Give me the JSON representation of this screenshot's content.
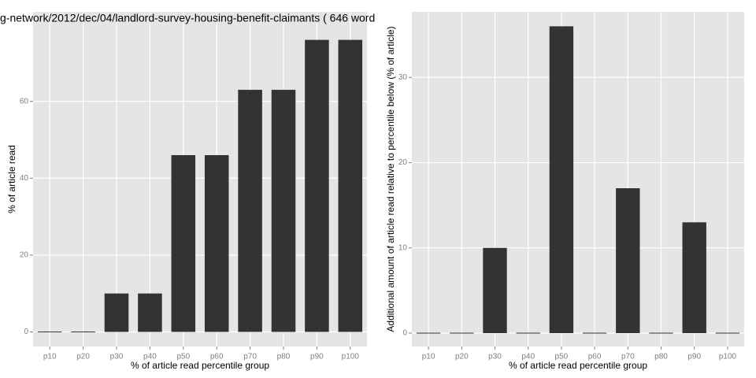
{
  "chart_data": [
    {
      "type": "bar",
      "title": "g-network/2012/dec/04/landlord-survey-housing-benefit-claimants ( 646 word",
      "x_label": "% of article read percentile group",
      "y_label": "% of article read",
      "categories": [
        "p10",
        "p20",
        "p30",
        "p40",
        "p50",
        "p60",
        "p70",
        "p80",
        "p90",
        "p100"
      ],
      "values": [
        0,
        0,
        10,
        10,
        46,
        46,
        63,
        63,
        76,
        76
      ],
      "color": "#333333",
      "ylim": [
        -3.8,
        83.3
      ],
      "yticks": [
        0,
        20,
        40,
        60
      ],
      "grid": true
    },
    {
      "type": "bar",
      "x_label": "% of article read percentile group",
      "y_label": "Additional amount of article read relative to percentile below (% of article)",
      "categories": [
        "p10",
        "p20",
        "p30",
        "p40",
        "p50",
        "p60",
        "p70",
        "p80",
        "p90",
        "p100"
      ],
      "values": [
        0,
        0,
        10,
        0,
        36,
        0,
        17,
        0,
        13,
        0
      ],
      "color": "#333333",
      "ylim": [
        -1.57,
        37.7
      ],
      "yticks": [
        0,
        10,
        20,
        30
      ],
      "grid": true
    }
  ]
}
